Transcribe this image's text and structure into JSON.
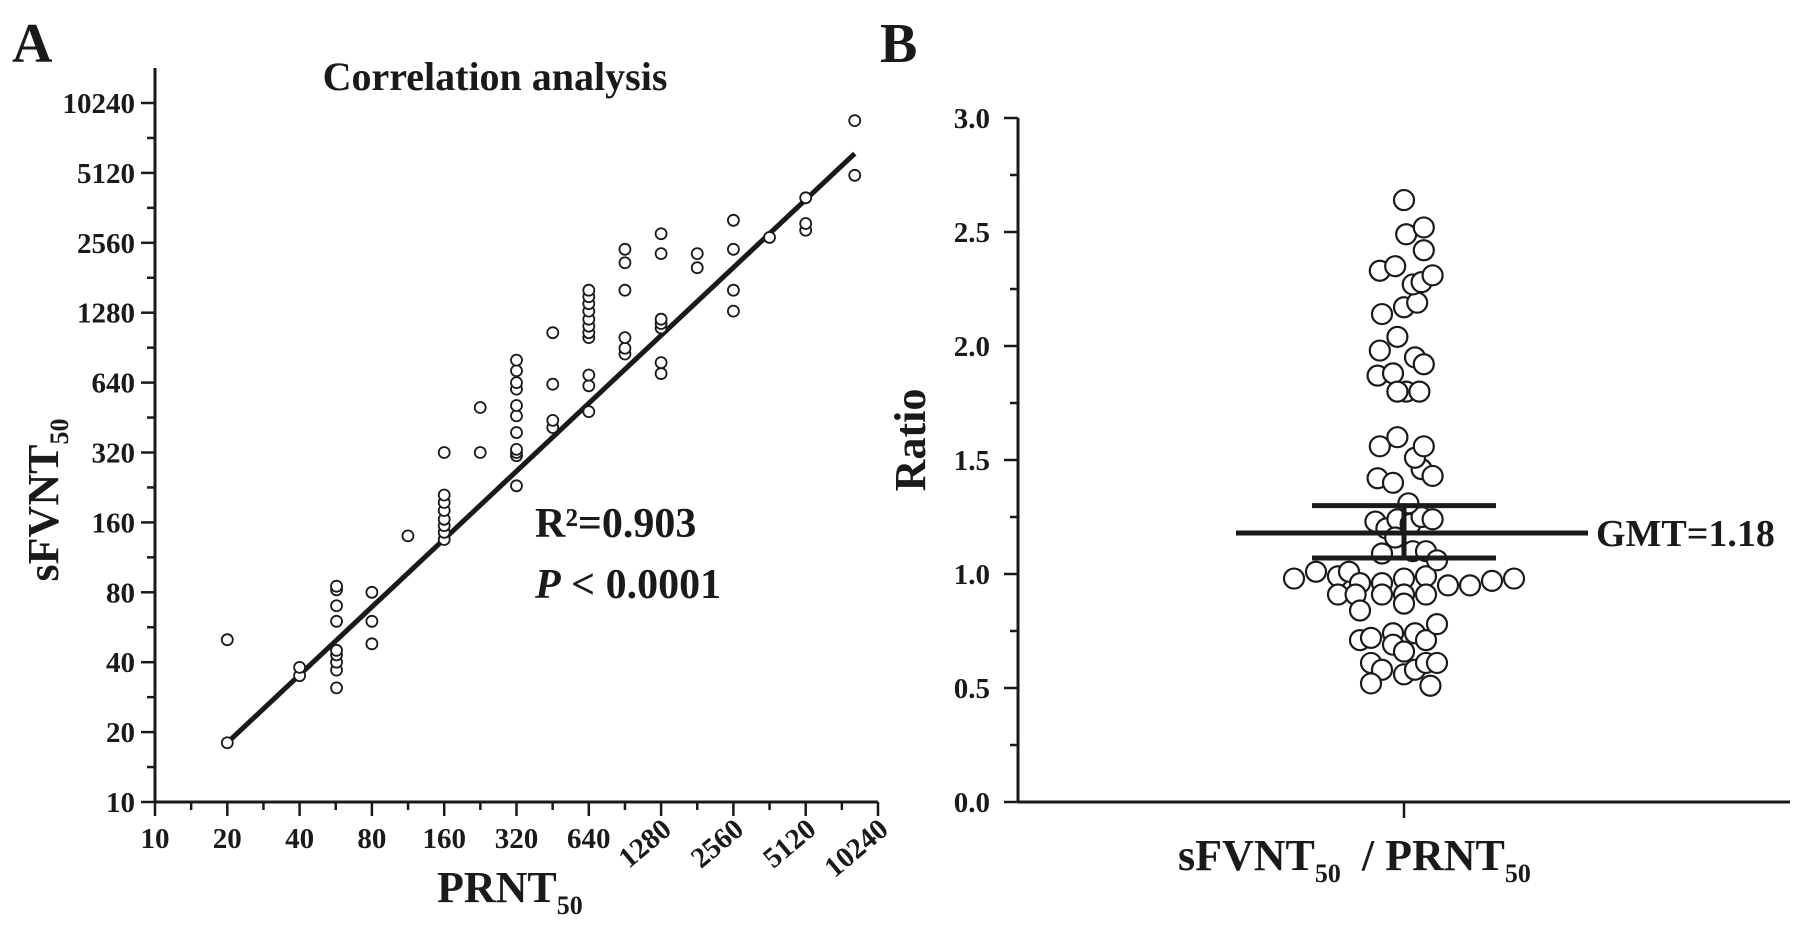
{
  "figure": {
    "panel_a_letter": "A",
    "panel_b_letter": "B"
  },
  "chart_data": [
    {
      "type": "scatter",
      "title": "Correlation analysis",
      "xlabel": "PRNT",
      "xlabel_sub": "50",
      "ylabel": "sFVNT",
      "ylabel_sub": "50",
      "xscale": "log2",
      "yscale": "log2",
      "xlim": [
        10,
        10240
      ],
      "ylim": [
        10,
        10240
      ],
      "x_ticks": [
        10,
        20,
        40,
        80,
        160,
        320,
        640,
        1280,
        2560,
        5120,
        10240
      ],
      "y_ticks": [
        10,
        20,
        40,
        80,
        160,
        320,
        640,
        1280,
        2560,
        5120,
        10240
      ],
      "annotation_r2": "R²=0.903",
      "annotation_p_italic": "P",
      "annotation_p_rest": " < 0.0001",
      "regression_line": {
        "x": [
          20,
          8192
        ],
        "y": [
          18,
          6200
        ]
      },
      "points": [
        [
          20,
          18
        ],
        [
          20,
          50
        ],
        [
          40,
          35
        ],
        [
          40,
          38
        ],
        [
          57,
          31
        ],
        [
          57,
          37
        ],
        [
          57,
          40
        ],
        [
          57,
          43
        ],
        [
          57,
          45
        ],
        [
          57,
          60
        ],
        [
          57,
          70
        ],
        [
          57,
          82
        ],
        [
          57,
          85
        ],
        [
          80,
          48
        ],
        [
          80,
          60
        ],
        [
          80,
          80
        ],
        [
          113,
          140
        ],
        [
          160,
          135
        ],
        [
          160,
          145
        ],
        [
          160,
          155
        ],
        [
          160,
          165
        ],
        [
          160,
          180
        ],
        [
          160,
          195
        ],
        [
          160,
          210
        ],
        [
          160,
          320
        ],
        [
          226,
          320
        ],
        [
          226,
          500
        ],
        [
          320,
          230
        ],
        [
          320,
          310
        ],
        [
          320,
          320
        ],
        [
          320,
          330
        ],
        [
          320,
          390
        ],
        [
          320,
          460
        ],
        [
          320,
          510
        ],
        [
          320,
          600
        ],
        [
          320,
          640
        ],
        [
          320,
          720
        ],
        [
          320,
          800
        ],
        [
          453,
          410
        ],
        [
          453,
          440
        ],
        [
          453,
          630
        ],
        [
          453,
          1050
        ],
        [
          640,
          480
        ],
        [
          640,
          620
        ],
        [
          640,
          690
        ],
        [
          640,
          1000
        ],
        [
          640,
          1050
        ],
        [
          640,
          1120
        ],
        [
          640,
          1200
        ],
        [
          640,
          1300
        ],
        [
          640,
          1400
        ],
        [
          640,
          1500
        ],
        [
          640,
          1600
        ],
        [
          905,
          850
        ],
        [
          905,
          900
        ],
        [
          905,
          1000
        ],
        [
          905,
          1600
        ],
        [
          905,
          2100
        ],
        [
          905,
          2400
        ],
        [
          1280,
          700
        ],
        [
          1280,
          780
        ],
        [
          1280,
          1100
        ],
        [
          1280,
          1150
        ],
        [
          1280,
          1200
        ],
        [
          1280,
          2300
        ],
        [
          1280,
          2800
        ],
        [
          1810,
          2000
        ],
        [
          1810,
          2300
        ],
        [
          2560,
          1300
        ],
        [
          2560,
          1600
        ],
        [
          2560,
          2400
        ],
        [
          2560,
          3200
        ],
        [
          3620,
          2700
        ],
        [
          5120,
          2900
        ],
        [
          5120,
          3100
        ],
        [
          5120,
          4000
        ],
        [
          8192,
          5000
        ],
        [
          8192,
          8600
        ]
      ]
    },
    {
      "type": "scatter",
      "subtype": "dot-plot",
      "ylabel": "Ratio",
      "xlabel_left": "sFVNT",
      "xlabel_left_sub": "50",
      "xlabel_right": " / PRNT",
      "xlabel_right_sub": "50",
      "ylim": [
        0.0,
        3.0
      ],
      "y_ticks": [
        "0.0",
        "0.5",
        "1.0",
        "1.5",
        "2.0",
        "2.5",
        "3.0"
      ],
      "gmt": 1.18,
      "gmt_label": "GMT=1.18",
      "ci_upper": 1.3,
      "ci_lower": 1.07,
      "points": [
        [
          -5,
          0.98
        ],
        [
          -4,
          1.01
        ],
        [
          -3,
          0.99
        ],
        [
          -2.5,
          1.01
        ],
        [
          -2,
          0.96
        ],
        [
          -1,
          0.96
        ],
        [
          0,
          0.98
        ],
        [
          1,
          0.99
        ],
        [
          2,
          0.95
        ],
        [
          3,
          0.95
        ],
        [
          4,
          0.97
        ],
        [
          5,
          0.98
        ],
        [
          -3,
          0.91
        ],
        [
          -2.2,
          0.91
        ],
        [
          -1,
          0.91
        ],
        [
          0,
          0.91
        ],
        [
          1,
          0.91
        ],
        [
          -2,
          0.84
        ],
        [
          0,
          0.87
        ],
        [
          -2,
          0.71
        ],
        [
          -1.5,
          0.72
        ],
        [
          -0.5,
          0.74
        ],
        [
          0.5,
          0.74
        ],
        [
          1,
          0.71
        ],
        [
          1.5,
          0.78
        ],
        [
          -0.5,
          0.69
        ],
        [
          -1.5,
          0.61
        ],
        [
          -1,
          0.58
        ],
        [
          0,
          0.56
        ],
        [
          0.5,
          0.58
        ],
        [
          1,
          0.61
        ],
        [
          1.5,
          0.61
        ],
        [
          0,
          0.66
        ],
        [
          -1.5,
          0.52
        ],
        [
          1.2,
          0.51
        ],
        [
          -1.3,
          1.23
        ],
        [
          -0.8,
          1.2
        ],
        [
          -0.3,
          1.24
        ],
        [
          0.3,
          1.22
        ],
        [
          0.8,
          1.25
        ],
        [
          1.3,
          1.24
        ],
        [
          -1,
          1.09
        ],
        [
          -0.4,
          1.16
        ],
        [
          0.4,
          1.1
        ],
        [
          1,
          1.1
        ],
        [
          1.5,
          1.06
        ],
        [
          -1.2,
          1.42
        ],
        [
          -0.5,
          1.4
        ],
        [
          0.2,
          1.31
        ],
        [
          0.8,
          1.46
        ],
        [
          1.3,
          1.43
        ],
        [
          -1.1,
          1.56
        ],
        [
          -0.3,
          1.6
        ],
        [
          0.5,
          1.51
        ],
        [
          0.9,
          1.56
        ],
        [
          -1.2,
          1.87
        ],
        [
          -0.5,
          1.88
        ],
        [
          0.1,
          1.8
        ],
        [
          0.7,
          1.8
        ],
        [
          -0.3,
          1.8
        ],
        [
          -1.1,
          1.98
        ],
        [
          -0.3,
          2.04
        ],
        [
          0.5,
          1.95
        ],
        [
          0.9,
          1.92
        ],
        [
          -1,
          2.14
        ],
        [
          0,
          2.17
        ],
        [
          0.6,
          2.19
        ],
        [
          -1.1,
          2.33
        ],
        [
          -0.4,
          2.35
        ],
        [
          0.4,
          2.27
        ],
        [
          0.8,
          2.28
        ],
        [
          1.3,
          2.31
        ],
        [
          0.1,
          2.49
        ],
        [
          0.9,
          2.42
        ],
        [
          0.9,
          2.52
        ],
        [
          0,
          2.64
        ]
      ]
    }
  ]
}
